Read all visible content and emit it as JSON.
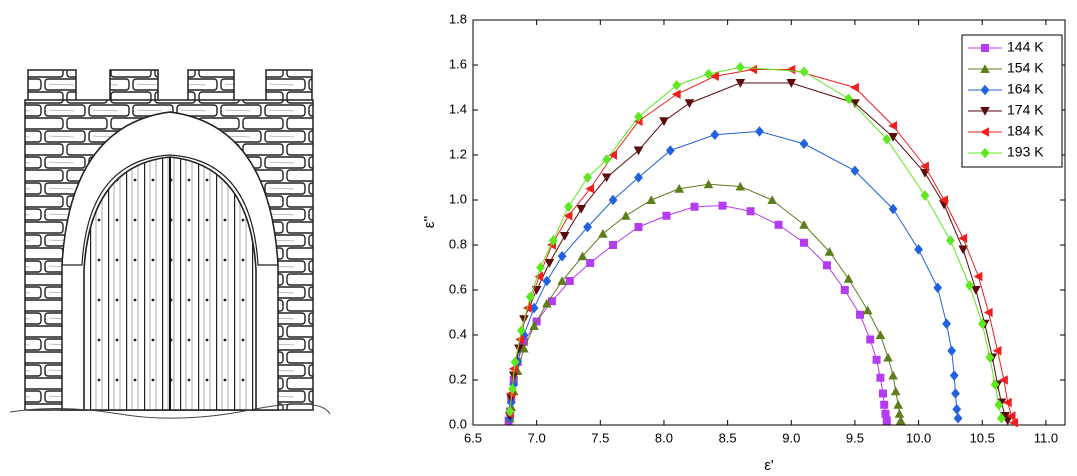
{
  "chart_data": {
    "type": "line",
    "xlabel": "ε'",
    "ylabel": "ε''",
    "xlim": [
      6.5,
      11.15
    ],
    "ylim": [
      0,
      1.8
    ],
    "xticks": [
      6.5,
      {
        "value": 7,
        "label": "7.0"
      },
      7.5,
      {
        "value": 8,
        "label": "8.0"
      },
      8.5,
      {
        "value": 9,
        "label": "9.0"
      },
      9.5,
      {
        "value": 10,
        "label": "10.0"
      },
      10.5,
      {
        "value": 11,
        "label": "11.0"
      }
    ],
    "yticks": [
      {
        "value": 0,
        "label": "0.0"
      },
      0.2,
      0.4,
      0.6,
      0.8,
      {
        "value": 1,
        "label": "1.0"
      },
      1.2,
      1.4,
      1.6,
      1.8
    ],
    "legend": "upper right",
    "series": [
      {
        "name": "144 K",
        "color": "#b43cf0",
        "marker": "square",
        "x": [
          6.78,
          6.79,
          6.8,
          6.82,
          6.85,
          6.9,
          7.0,
          7.12,
          7.26,
          7.42,
          7.6,
          7.8,
          8.02,
          8.24,
          8.46,
          8.68,
          8.9,
          9.1,
          9.28,
          9.42,
          9.54,
          9.62,
          9.67,
          9.7,
          9.72,
          9.73,
          9.74,
          9.75
        ],
        "values": [
          0.02,
          0.06,
          0.12,
          0.2,
          0.28,
          0.37,
          0.46,
          0.55,
          0.64,
          0.72,
          0.8,
          0.88,
          0.93,
          0.97,
          0.975,
          0.95,
          0.89,
          0.81,
          0.71,
          0.6,
          0.49,
          0.38,
          0.29,
          0.21,
          0.14,
          0.09,
          0.05,
          0.02
        ]
      },
      {
        "name": "154 K",
        "color": "#5e7d1c",
        "marker": "triangle-up",
        "x": [
          6.79,
          6.8,
          6.82,
          6.85,
          6.9,
          6.98,
          7.08,
          7.2,
          7.36,
          7.52,
          7.7,
          7.9,
          8.12,
          8.35,
          8.6,
          8.85,
          9.1,
          9.3,
          9.45,
          9.6,
          9.7,
          9.76,
          9.8,
          9.82,
          9.84,
          9.85,
          9.86
        ],
        "values": [
          0.03,
          0.08,
          0.15,
          0.24,
          0.34,
          0.44,
          0.54,
          0.64,
          0.75,
          0.85,
          0.93,
          1.0,
          1.05,
          1.07,
          1.06,
          1.0,
          0.89,
          0.77,
          0.65,
          0.51,
          0.4,
          0.3,
          0.22,
          0.15,
          0.09,
          0.05,
          0.02
        ]
      },
      {
        "name": "164 K",
        "color": "#2262e0",
        "marker": "diamond",
        "x": [
          6.79,
          6.8,
          6.82,
          6.85,
          6.9,
          6.98,
          7.08,
          7.2,
          7.4,
          7.6,
          7.8,
          8.05,
          8.4,
          8.75,
          9.1,
          9.5,
          9.8,
          10.0,
          10.15,
          10.22,
          10.26,
          10.28,
          10.29,
          10.3,
          10.31
        ],
        "values": [
          0.03,
          0.1,
          0.18,
          0.28,
          0.4,
          0.52,
          0.64,
          0.75,
          0.88,
          1.0,
          1.1,
          1.22,
          1.29,
          1.305,
          1.25,
          1.13,
          0.96,
          0.78,
          0.61,
          0.45,
          0.33,
          0.22,
          0.14,
          0.07,
          0.03
        ]
      },
      {
        "name": "174 K",
        "color": "#5a0c0c",
        "marker": "triangle-down",
        "x": [
          6.79,
          6.8,
          6.82,
          6.86,
          6.9,
          7.0,
          7.1,
          7.22,
          7.35,
          7.55,
          7.8,
          8.0,
          8.2,
          8.6,
          9.0,
          9.5,
          9.8,
          10.05,
          10.2,
          10.35,
          10.45,
          10.52,
          10.58,
          10.62,
          10.65,
          10.68,
          10.7
        ],
        "values": [
          0.04,
          0.12,
          0.22,
          0.34,
          0.47,
          0.6,
          0.72,
          0.84,
          0.96,
          1.1,
          1.22,
          1.35,
          1.43,
          1.52,
          1.52,
          1.43,
          1.28,
          1.12,
          0.98,
          0.78,
          0.6,
          0.45,
          0.3,
          0.18,
          0.1,
          0.04,
          0.02
        ]
      },
      {
        "name": "184 K",
        "color": "#f02020",
        "marker": "triangle-left",
        "x": [
          6.79,
          6.8,
          6.82,
          6.87,
          6.93,
          7.02,
          7.12,
          7.25,
          7.42,
          7.6,
          7.8,
          8.1,
          8.4,
          8.7,
          9.0,
          9.5,
          9.8,
          10.05,
          10.2,
          10.35,
          10.47,
          10.55,
          10.62,
          10.67,
          10.7,
          10.73,
          10.75
        ],
        "values": [
          0.05,
          0.14,
          0.25,
          0.38,
          0.52,
          0.66,
          0.8,
          0.93,
          1.05,
          1.2,
          1.35,
          1.47,
          1.55,
          1.58,
          1.58,
          1.5,
          1.33,
          1.15,
          1.0,
          0.83,
          0.66,
          0.5,
          0.33,
          0.2,
          0.1,
          0.04,
          0.01
        ]
      },
      {
        "name": "193 K",
        "color": "#5ee820",
        "marker": "diamond",
        "x": [
          6.79,
          6.81,
          6.83,
          6.88,
          6.95,
          7.03,
          7.13,
          7.25,
          7.4,
          7.55,
          7.8,
          8.1,
          8.35,
          8.6,
          9.1,
          9.45,
          9.75,
          10.05,
          10.25,
          10.4,
          10.5,
          10.56,
          10.6,
          10.63,
          10.65
        ],
        "values": [
          0.06,
          0.16,
          0.28,
          0.42,
          0.57,
          0.7,
          0.82,
          0.97,
          1.1,
          1.18,
          1.37,
          1.51,
          1.56,
          1.59,
          1.57,
          1.45,
          1.27,
          1.02,
          0.82,
          0.62,
          0.45,
          0.3,
          0.18,
          0.09,
          0.03
        ]
      }
    ]
  }
}
